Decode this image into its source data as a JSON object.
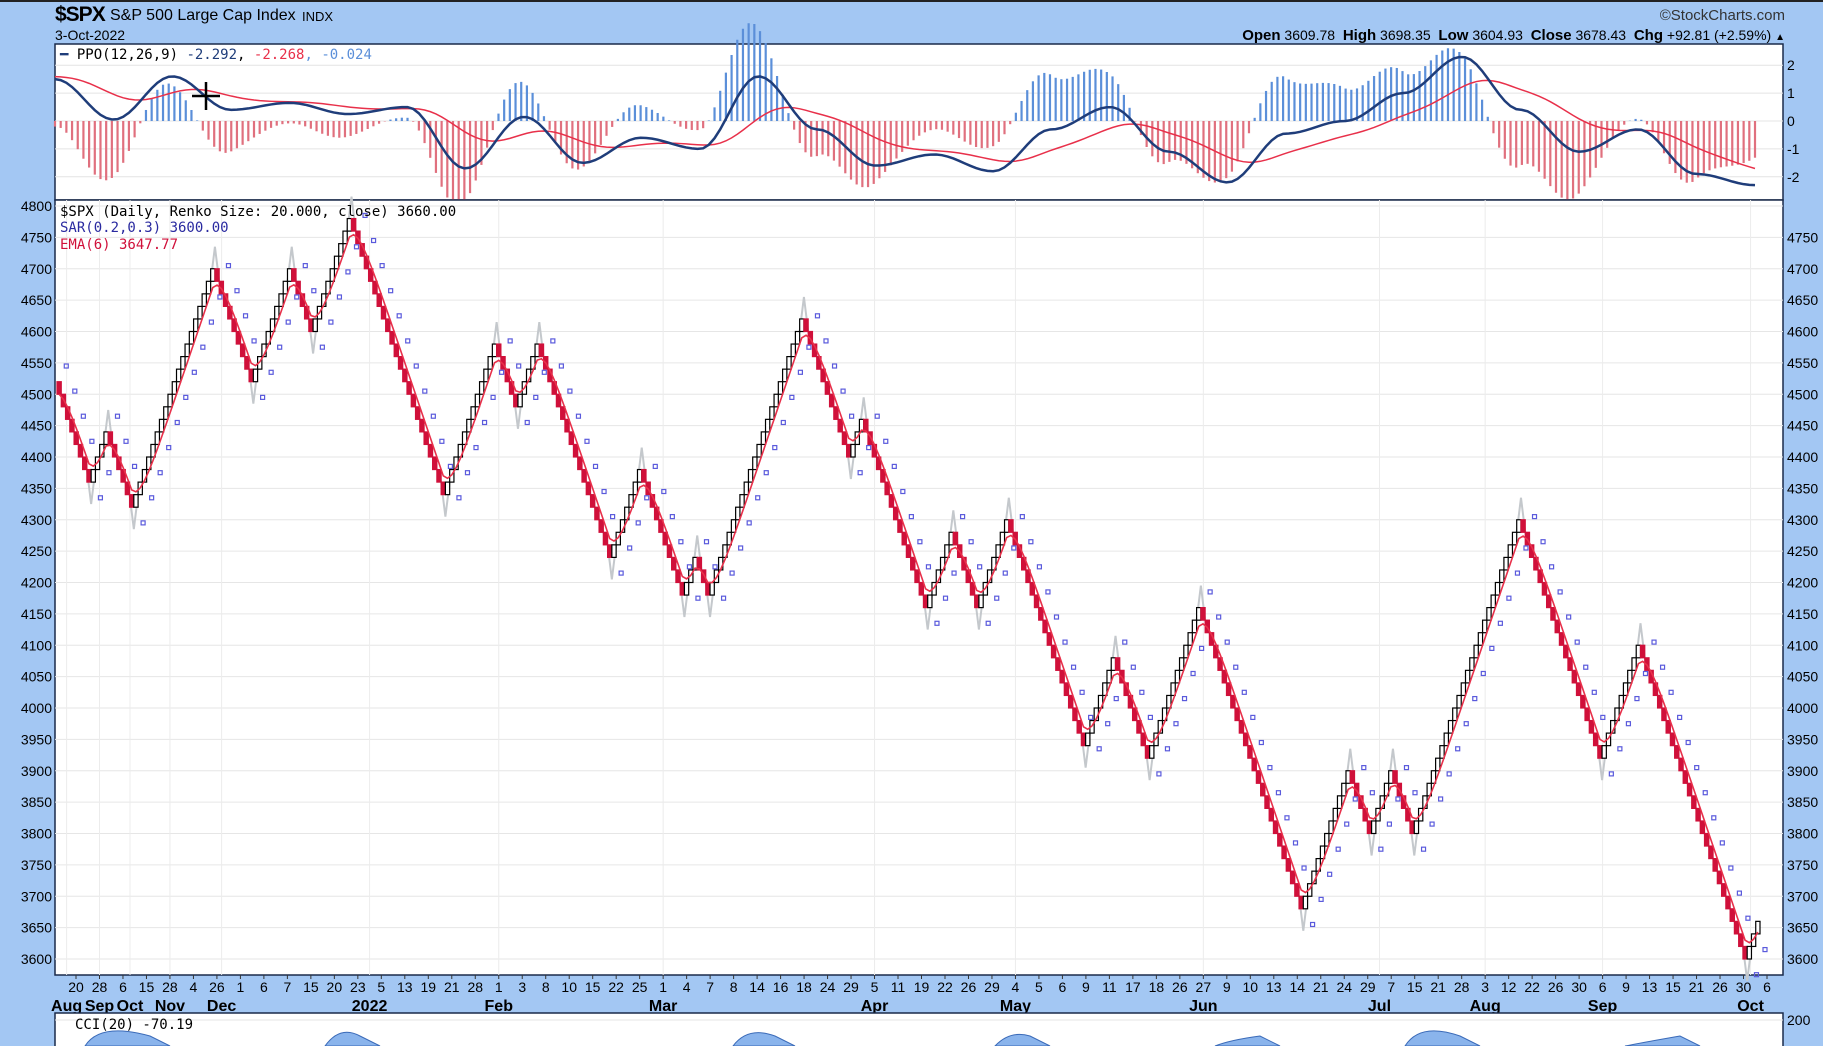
{
  "header": {
    "symbol": "$SPX",
    "name": "S&P 500 Large Cap Index",
    "exchange": "INDX",
    "date": "3-Oct-2022",
    "brand": "©StockCharts.com",
    "open_label": "Open",
    "open": "3609.78",
    "high_label": "High",
    "high": "3698.35",
    "low_label": "Low",
    "low": "3604.93",
    "close_label": "Close",
    "close": "3678.43",
    "chg_label": "Chg",
    "chg": "+92.81 (+2.59%)",
    "chg_icon": "triangle-up-icon"
  },
  "colors": {
    "ppo": "#1f3d7a",
    "signal": "#e8304a",
    "hist_pos": "#5b8fd9",
    "hist_neg": "#e0707e",
    "up_brick": "#000000",
    "down_brick": "#d0103a",
    "sar": "#5a5adc",
    "ema": "#e8304a",
    "close_line": "#c4c8cc",
    "background": "#a3c7f3"
  },
  "chart_data": [
    {
      "type": "line",
      "panel": "PPO",
      "legend": {
        "label": "PPO(12,26,9)",
        "ppo": "-2.292",
        "signal": "-2.268",
        "histogram": "-0.024"
      },
      "ylim": [
        -2.8,
        2.8
      ],
      "yticks": [
        2,
        1,
        0,
        -1,
        -2
      ],
      "ppo_series": [
        1.5,
        0.05,
        1.6,
        0.4,
        0.65,
        0.25,
        0.5,
        -1.7,
        0.15,
        -1.5,
        -0.6,
        -1.0,
        1.6,
        -0.3,
        -1.6,
        -1.2,
        -1.8,
        -0.3,
        0.5,
        -1.1,
        -2.2,
        -0.45,
        0.0,
        1.0,
        2.3,
        0.4,
        -1.1,
        -0.3,
        -1.9,
        -2.3
      ],
      "grid": true
    },
    {
      "type": "renko",
      "panel": "price",
      "legend": {
        "main": "$SPX (Daily, Renko Size: 20.000, close) 3660.00",
        "sar": "SAR(0.2,0.3) 3600.00",
        "ema": "EMA(6) 3647.77"
      },
      "brick_size": 20,
      "ylim": [
        3580,
        4800
      ],
      "yticks_left": [
        4800,
        4750,
        4700,
        4650,
        4600,
        4550,
        4500,
        4450,
        4400,
        4350,
        4300,
        4250,
        4200,
        4150,
        4100,
        4050,
        4000,
        3950,
        3900,
        3850,
        3800,
        3750,
        3700,
        3650,
        3600
      ],
      "yticks_right": [
        4750,
        4700,
        4650,
        4600,
        4550,
        4500,
        4450,
        4400,
        4350,
        4300,
        4250,
        4200,
        4150,
        4100,
        4050,
        4000,
        3950,
        3900,
        3850,
        3800,
        3750,
        3700,
        3650,
        3600
      ],
      "pivots": [
        4520,
        4360,
        4440,
        4320,
        4700,
        4520,
        4700,
        4600,
        4780,
        4340,
        4580,
        4480,
        4580,
        4240,
        4380,
        4180,
        4240,
        4180,
        4620,
        4400,
        4460,
        4160,
        4280,
        4160,
        4300,
        3940,
        4080,
        3920,
        4160,
        3680,
        3900,
        3800,
        3900,
        3800,
        4300,
        3920,
        4100,
        3600,
        3660
      ],
      "x_tick_labels": [
        "20",
        "28",
        "6",
        "15",
        "28",
        "4",
        "26",
        "1",
        "6",
        "7",
        "15",
        "20",
        "23",
        "5",
        "13",
        "19",
        "21",
        "28",
        "1",
        "3",
        "8",
        "10",
        "15",
        "22",
        "25",
        "1",
        "4",
        "7",
        "8",
        "14",
        "16",
        "18",
        "24",
        "29",
        "5",
        "11",
        "19",
        "22",
        "26",
        "29",
        "4",
        "5",
        "6",
        "9",
        "11",
        "17",
        "18",
        "26",
        "27",
        "9",
        "10",
        "13",
        "14",
        "21",
        "24",
        "29",
        "7",
        "15",
        "21",
        "28",
        "3",
        "12",
        "22",
        "26",
        "30",
        "6",
        "9",
        "13",
        "15",
        "21",
        "26",
        "30",
        "6"
      ],
      "months": [
        {
          "label": "Aug",
          "at_tick": -0.4
        },
        {
          "label": "Sep",
          "at_tick": 1
        },
        {
          "label": "Oct",
          "at_tick": 2.3
        },
        {
          "label": "Nov",
          "at_tick": 4
        },
        {
          "label": "Dec",
          "at_tick": 6.2
        },
        {
          "label": "2022",
          "at_tick": 12.5
        },
        {
          "label": "Feb",
          "at_tick": 18
        },
        {
          "label": "Mar",
          "at_tick": 25
        },
        {
          "label": "Apr",
          "at_tick": 34
        },
        {
          "label": "May",
          "at_tick": 40
        },
        {
          "label": "Jun",
          "at_tick": 48
        },
        {
          "label": "Jul",
          "at_tick": 55.5
        },
        {
          "label": "Aug",
          "at_tick": 60
        },
        {
          "label": "Sep",
          "at_tick": 65
        },
        {
          "label": "Oct",
          "at_tick": 71.3
        }
      ],
      "grid": true
    },
    {
      "type": "area",
      "panel": "CCI",
      "legend": {
        "label": "CCI(20) -70.19"
      },
      "yticks": [
        200
      ]
    }
  ]
}
